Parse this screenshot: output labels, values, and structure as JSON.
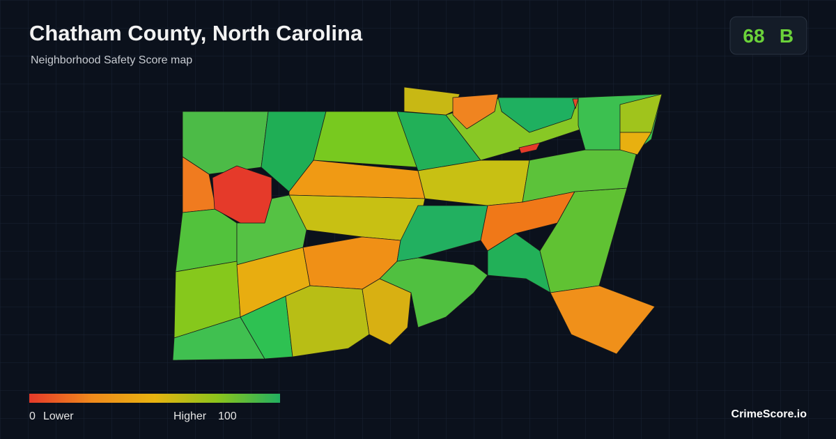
{
  "header": {
    "title": "Chatham County, North Carolina",
    "subtitle": "Neighborhood Safety Score map"
  },
  "score": {
    "value": 68,
    "grade": "B"
  },
  "legend": {
    "min": 0,
    "min_label": "Lower",
    "max_label": "Higher",
    "max": 100
  },
  "brand": "CrimeScore.io"
}
